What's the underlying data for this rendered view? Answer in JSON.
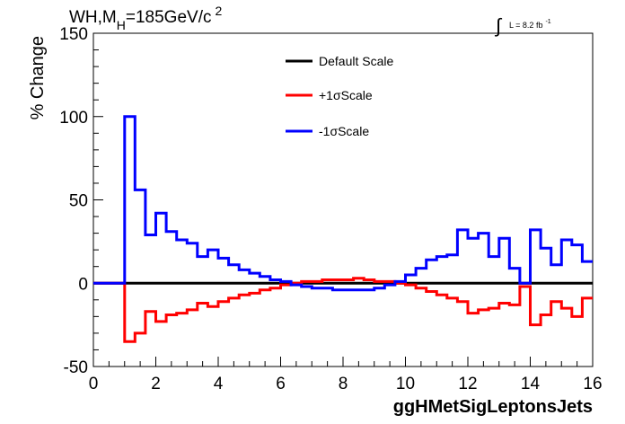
{
  "chart_data": {
    "type": "line",
    "step": true,
    "title_main": "WH,M",
    "title_sub": "H",
    "title_rest": "=185GeV/c",
    "title_sup": "2",
    "lumi_label": "L = 8.2 fb",
    "lumi_sup": "-1",
    "lumi_symbol": "∫",
    "xlabel": "ggHMetSigLeptonsJets",
    "ylabel": "% Change",
    "xlim": [
      0,
      16
    ],
    "ylim": [
      -50,
      150
    ],
    "xticks": [
      0,
      2,
      4,
      6,
      8,
      10,
      12,
      14,
      16
    ],
    "yticks": [
      -50,
      0,
      50,
      100,
      150
    ],
    "grid": false,
    "legend_position": "top-center",
    "bin_edges": [
      0,
      0.333,
      0.667,
      1.0,
      1.333,
      1.667,
      2.0,
      2.333,
      2.667,
      3.0,
      3.333,
      3.667,
      4.0,
      4.333,
      4.667,
      5.0,
      5.333,
      5.667,
      6.0,
      6.333,
      6.667,
      7.0,
      7.333,
      7.667,
      8.0,
      8.333,
      8.667,
      9.0,
      9.333,
      9.667,
      10.0,
      10.333,
      10.667,
      11.0,
      11.333,
      11.667,
      12.0,
      12.333,
      12.667,
      13.0,
      13.333,
      13.667,
      14.0,
      14.333,
      14.667,
      15.0,
      15.333,
      15.667,
      16.0
    ],
    "series": [
      {
        "name": "Default Scale",
        "color": "#000000",
        "values": [
          0,
          0,
          0,
          0,
          0,
          0,
          0,
          0,
          0,
          0,
          0,
          0,
          0,
          0,
          0,
          0,
          0,
          0,
          0,
          0,
          0,
          0,
          0,
          0,
          0,
          0,
          0,
          0,
          0,
          0,
          0,
          0,
          0,
          0,
          0,
          0,
          0,
          0,
          0,
          0,
          0,
          0,
          0,
          0,
          0,
          0,
          0,
          0
        ]
      },
      {
        "name": "+1σScale",
        "color": "#ff0000",
        "values": [
          0,
          0,
          0,
          -35,
          -30,
          -17,
          -23,
          -19,
          -18,
          -16,
          -12,
          -14,
          -11,
          -9,
          -7,
          -6,
          -4,
          -3,
          -1,
          0,
          1,
          1,
          2,
          2,
          2,
          3,
          2,
          1,
          1,
          0,
          -1,
          -3,
          -5,
          -7,
          -9,
          -11,
          -18,
          -16,
          -15,
          -12,
          -13,
          -2,
          -25,
          -19,
          -11,
          -15,
          -20,
          -9
        ]
      },
      {
        "name": "-1σScale",
        "color": "#0000ff",
        "values": [
          0,
          0,
          0,
          100,
          56,
          29,
          42,
          31,
          26,
          24,
          16,
          20,
          15,
          11,
          8,
          6,
          4,
          2,
          1,
          -1,
          -2,
          -3,
          -3,
          -4,
          -4,
          -4,
          -4,
          -3,
          -1,
          1,
          5,
          9,
          14,
          16,
          17,
          32,
          27,
          30,
          16,
          27,
          9,
          0,
          32,
          21,
          11,
          26,
          23,
          13
        ]
      }
    ]
  }
}
